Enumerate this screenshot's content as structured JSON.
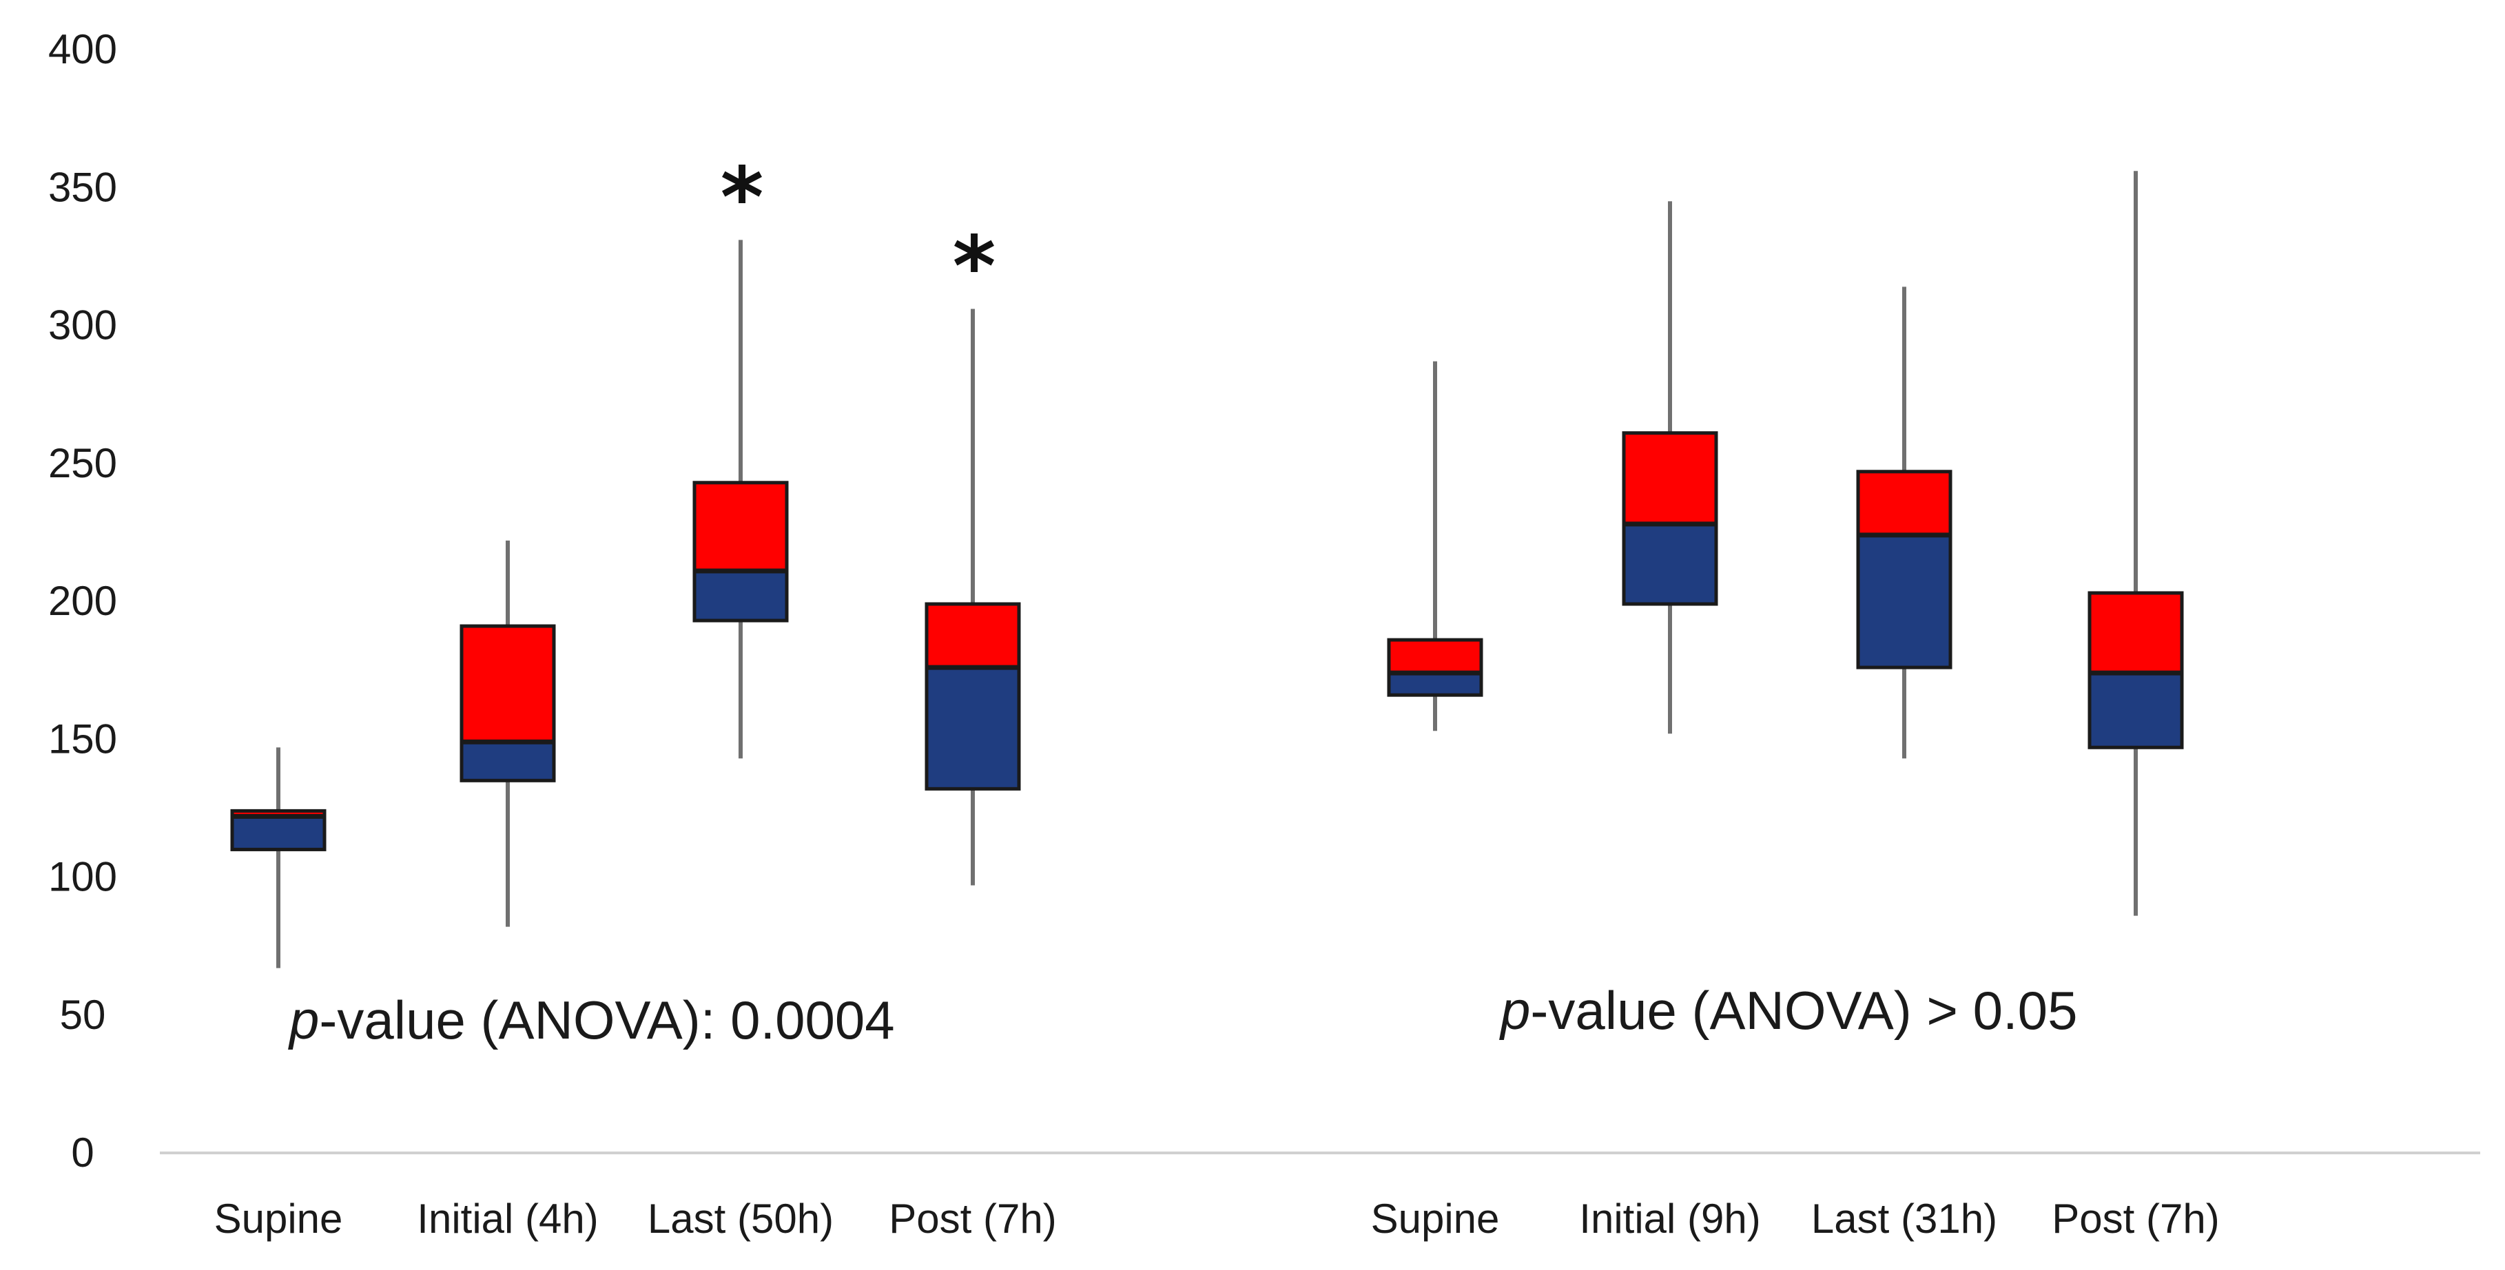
{
  "chart_data": {
    "type": "boxplot",
    "title": "",
    "xlabel": "",
    "ylabel": "",
    "ylim": [
      0,
      400
    ],
    "yticks": [
      0,
      50,
      100,
      150,
      200,
      250,
      300,
      350,
      400
    ],
    "grid": false,
    "colors": {
      "upper_box": "#ff0000",
      "lower_box": "#1f3d80",
      "whisker": "#707070",
      "axis": "#d0d0d0"
    },
    "groups": [
      {
        "annotation_prefix": "p",
        "annotation_text": "-value (ANOVA): 0.0004",
        "boxes": [
          {
            "label": "Supine",
            "min": 67,
            "q1": 110,
            "median": 122,
            "q3": 124,
            "max": 147,
            "significant": false
          },
          {
            "label": "Initial (4h)",
            "min": 82,
            "q1": 135,
            "median": 149,
            "q3": 191,
            "max": 222,
            "significant": false
          },
          {
            "label": "Last (50h)",
            "min": 143,
            "q1": 193,
            "median": 211,
            "q3": 243,
            "max": 331,
            "significant": true
          },
          {
            "label": "Post (7h)",
            "min": 97,
            "q1": 132,
            "median": 176,
            "q3": 199,
            "max": 306,
            "significant": true
          }
        ]
      },
      {
        "annotation_prefix": "p",
        "annotation_text": "-value (ANOVA) > 0.05",
        "boxes": [
          {
            "label": "Supine",
            "min": 153,
            "q1": 166,
            "median": 174,
            "q3": 186,
            "max": 287,
            "significant": false
          },
          {
            "label": "Initial (9h)",
            "min": 152,
            "q1": 199,
            "median": 228,
            "q3": 261,
            "max": 345,
            "significant": false
          },
          {
            "label": "Last (31h)",
            "min": 143,
            "q1": 176,
            "median": 224,
            "q3": 247,
            "max": 314,
            "significant": false
          },
          {
            "label": "Post (7h)",
            "min": 86,
            "q1": 147,
            "median": 174,
            "q3": 203,
            "max": 356,
            "significant": false
          }
        ]
      }
    ],
    "significance_marker": "*"
  }
}
